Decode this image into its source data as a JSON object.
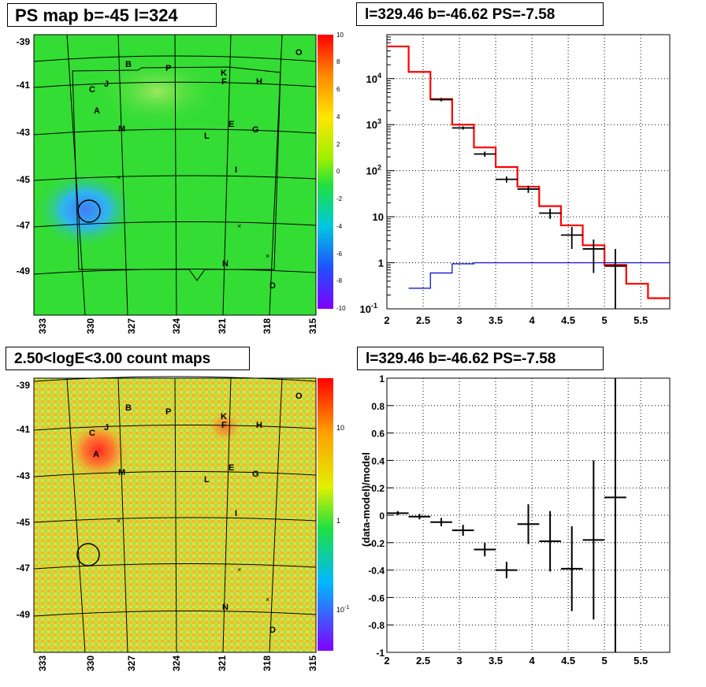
{
  "panels": {
    "ps_map": {
      "title": "PS map b=-45 l=324"
    },
    "spectrum": {
      "title": "l=329.46 b=-46.62 PS=-7.58"
    },
    "count_map": {
      "title": "2.50<logE<3.00 count maps"
    },
    "residual": {
      "title": "l=329.46 b=-46.62 PS=-7.58"
    }
  },
  "chart_data": [
    {
      "type": "heatmap",
      "name": "ps_map",
      "title": "PS map b=-45 l=324",
      "x_ticks": [
        "333",
        "330",
        "327",
        "324",
        "321",
        "318",
        "315"
      ],
      "y_ticks": [
        "-39",
        "-41",
        "-43",
        "-45",
        "-47",
        "-49"
      ],
      "colorbar": {
        "ticks": [
          "10",
          "8",
          "6",
          "4",
          "2",
          "0",
          "-2",
          "-4",
          "-6",
          "-8",
          "-10"
        ],
        "range": [
          -10,
          10
        ]
      },
      "source_labels": [
        "A",
        "B",
        "C",
        "D",
        "E",
        "F",
        "G",
        "H",
        "I",
        "J",
        "K",
        "L",
        "M",
        "N",
        "O",
        "P"
      ],
      "colors": {
        "background": "#33dd33",
        "low": "#22a9f2",
        "circle": "#000000"
      }
    },
    {
      "type": "line",
      "name": "spectrum",
      "title": "l=329.46 b=-46.62 PS=-7.58",
      "x_ticks": [
        "2",
        "2.5",
        "3",
        "3.5",
        "4",
        "4.5",
        "5",
        "5.5"
      ],
      "y_ticks": [
        "10^-1",
        "1",
        "10",
        "10^2",
        "10^3",
        "10^4"
      ],
      "xlim": [
        2,
        5.9
      ],
      "ylim": [
        0.1,
        90000
      ],
      "yscale": "log",
      "grid": true,
      "series": [
        {
          "color": "#ff0000",
          "style": "step",
          "edges": [
            2,
            2.3,
            2.6,
            2.9,
            3.2,
            3.5,
            3.8,
            4.1,
            4.4,
            4.7,
            5.0,
            5.3,
            5.6,
            5.9
          ],
          "values": [
            50000,
            14000,
            3600,
            1000,
            320,
            120,
            45,
            17,
            6.5,
            2.4,
            0.9,
            0.35,
            0.17
          ]
        },
        {
          "color": "#0000cc",
          "style": "step",
          "edges": [
            2.3,
            2.6,
            2.9,
            3.2,
            3.5,
            3.8,
            4.1,
            4.4,
            4.7,
            5.0,
            5.3,
            5.9
          ],
          "values": [
            0.28,
            0.6,
            0.95,
            1,
            1,
            1,
            1,
            1,
            1,
            1,
            1
          ]
        },
        {
          "color": "#000000",
          "style": "points",
          "x": [
            2.75,
            3.05,
            3.35,
            3.65,
            3.95,
            4.25,
            4.55,
            4.85,
            5.15
          ],
          "xerr": 0.15,
          "y": [
            3500,
            850,
            230,
            65,
            40,
            12,
            4,
            2,
            0.85
          ],
          "ylo": [
            3200,
            780,
            200,
            55,
            33,
            9,
            2,
            0.6,
            0.1
          ],
          "yhi": [
            3800,
            920,
            260,
            75,
            47,
            15,
            6,
            3.2,
            2
          ]
        }
      ]
    },
    {
      "type": "heatmap",
      "name": "count_map",
      "title": "2.50<logE<3.00 count maps",
      "x_ticks": [
        "333",
        "330",
        "327",
        "324",
        "321",
        "318",
        "315"
      ],
      "y_ticks": [
        "-39",
        "-41",
        "-43",
        "-45",
        "-47",
        "-49"
      ],
      "colorbar": {
        "ticks": [
          "10",
          "1",
          "10^-1"
        ],
        "scale": "log"
      },
      "source_labels": [
        "A",
        "B",
        "C",
        "D",
        "E",
        "F",
        "G",
        "H",
        "I",
        "J",
        "K",
        "L",
        "M",
        "N",
        "O",
        "P"
      ],
      "colors": {
        "background": "#d8d830",
        "hot": "#ff3322",
        "circle": "#000000"
      }
    },
    {
      "type": "scatter",
      "name": "residual",
      "title": "l=329.46 b=-46.62 PS=-7.58",
      "ylabel": "(data-model)/model",
      "x_ticks": [
        "2",
        "2.5",
        "3",
        "3.5",
        "4",
        "4.5",
        "5",
        "5.5"
      ],
      "y_ticks": [
        "1",
        "0.8",
        "0.6",
        "0.4",
        "0.2",
        "0",
        "-0.2",
        "-0.4",
        "-0.6",
        "-0.8",
        "-1"
      ],
      "xlim": [
        2,
        5.9
      ],
      "ylim": [
        -1,
        1
      ],
      "grid": true,
      "series": [
        {
          "color": "#000000",
          "x": [
            2.15,
            2.45,
            2.75,
            3.05,
            3.35,
            3.65,
            3.95,
            4.25,
            4.55,
            4.85,
            5.15
          ],
          "xerr": 0.15,
          "y": [
            0.015,
            -0.01,
            -0.05,
            -0.11,
            -0.25,
            -0.4,
            -0.065,
            -0.19,
            -0.39,
            -0.18,
            0.13
          ],
          "ylo": [
            0.0,
            -0.03,
            -0.08,
            -0.15,
            -0.3,
            -0.46,
            -0.21,
            -0.41,
            -0.7,
            -0.76,
            -1.0
          ],
          "yhi": [
            0.03,
            0.01,
            -0.02,
            -0.07,
            -0.2,
            -0.34,
            0.08,
            0.03,
            -0.08,
            0.4,
            1.0
          ]
        }
      ]
    }
  ]
}
